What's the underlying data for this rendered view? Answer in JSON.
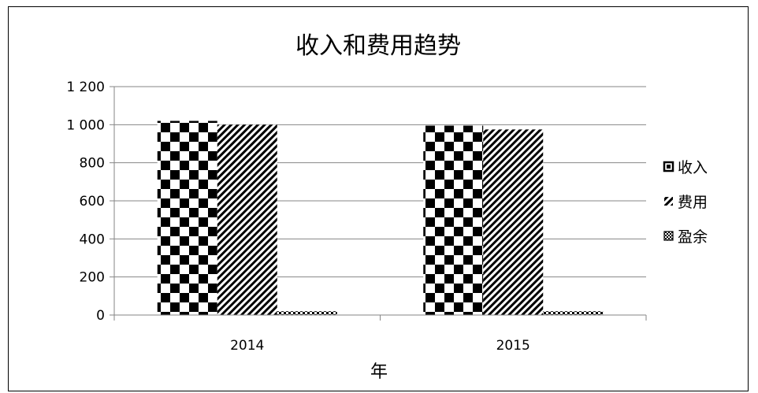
{
  "chart_data": {
    "type": "bar",
    "title": "收入和费用趋势",
    "xlabel": "年",
    "ylabel": "",
    "categories": [
      "2014",
      "2015"
    ],
    "ylim": [
      0,
      1200
    ],
    "yticks": [
      0,
      200,
      400,
      600,
      800,
      1000,
      1200
    ],
    "ytick_labels": [
      "0",
      "200",
      "400",
      "600",
      "800",
      "1 000",
      "1 200"
    ],
    "grid": true,
    "legend_position": "right",
    "series": [
      {
        "name": "收入",
        "values": [
          1020,
          995
        ],
        "pattern": "checker-large"
      },
      {
        "name": "费用",
        "values": [
          1000,
          975
        ],
        "pattern": "diagonal"
      },
      {
        "name": "盈余",
        "values": [
          20,
          20
        ],
        "pattern": "checker-small"
      }
    ]
  }
}
